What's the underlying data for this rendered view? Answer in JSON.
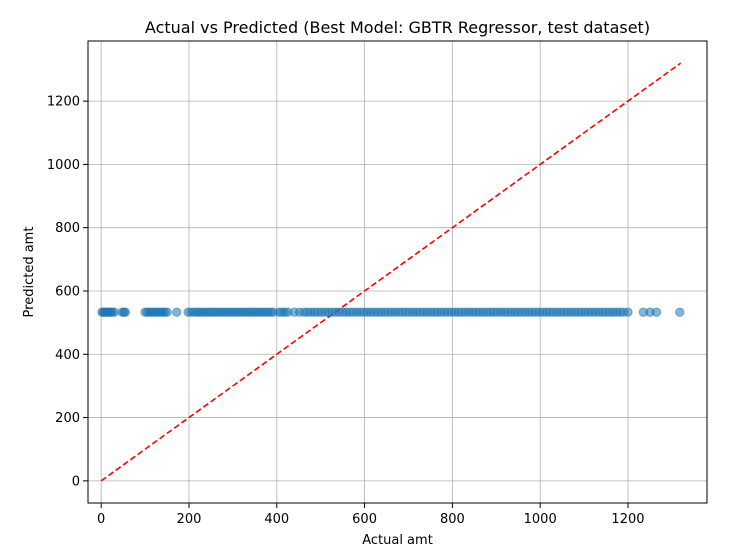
{
  "chart_data": {
    "type": "scatter",
    "title": "Actual vs Predicted (Best Model: GBTR Regressor, test dataset)",
    "xlabel": "Actual amt",
    "ylabel": "Predicted amt",
    "xlim": [
      -30,
      1380
    ],
    "ylim": [
      -70,
      1390
    ],
    "xticks": [
      0,
      200,
      400,
      600,
      800,
      1000,
      1200
    ],
    "yticks": [
      0,
      200,
      400,
      600,
      800,
      1000,
      1200
    ],
    "grid": true,
    "colors": {
      "points": "#1f77b4",
      "reference": "#ff0000"
    },
    "reference_line": {
      "style": "dashed",
      "x": [
        0,
        1320
      ],
      "y": [
        0,
        1320
      ]
    },
    "series": [
      {
        "marker": "circle",
        "x": [
          2,
          5,
          8,
          12,
          15,
          18,
          22,
          25,
          30,
          48,
          52,
          55,
          100,
          105,
          110,
          115,
          120,
          125,
          130,
          135,
          140,
          145,
          150,
          172,
          198,
          205,
          212,
          218,
          224,
          230,
          236,
          242,
          248,
          254,
          260,
          266,
          272,
          278,
          284,
          290,
          296,
          302,
          308,
          314,
          320,
          326,
          332,
          338,
          344,
          350,
          356,
          362,
          368,
          374,
          380,
          386,
          392,
          405,
          412,
          418,
          425,
          440,
          452,
          462,
          470,
          478,
          486,
          494,
          502,
          510,
          518,
          526,
          534,
          542,
          550,
          558,
          566,
          574,
          582,
          590,
          598,
          606,
          614,
          622,
          630,
          638,
          646,
          654,
          662,
          670,
          678,
          686,
          694,
          702,
          710,
          718,
          726,
          734,
          742,
          750,
          758,
          766,
          774,
          782,
          790,
          798,
          806,
          814,
          822,
          830,
          838,
          846,
          854,
          862,
          870,
          878,
          886,
          894,
          902,
          910,
          918,
          926,
          934,
          942,
          950,
          958,
          966,
          974,
          982,
          990,
          998,
          1006,
          1014,
          1022,
          1030,
          1038,
          1046,
          1054,
          1062,
          1070,
          1078,
          1086,
          1094,
          1102,
          1110,
          1118,
          1126,
          1134,
          1142,
          1150,
          1158,
          1166,
          1174,
          1182,
          1190,
          1200,
          1235,
          1250,
          1265,
          1318
        ],
        "y": 533
      }
    ]
  }
}
